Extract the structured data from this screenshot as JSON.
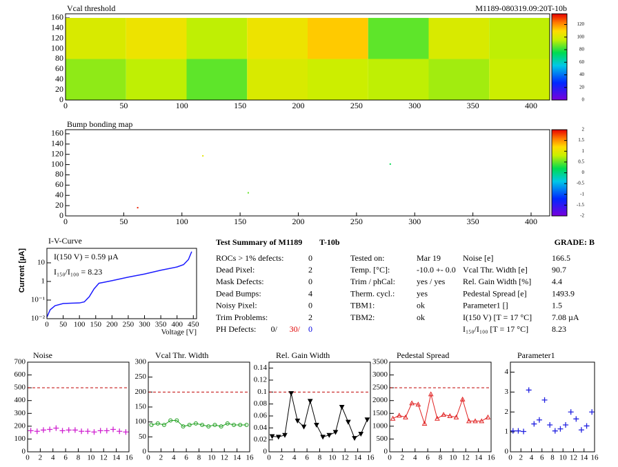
{
  "header": {
    "run_label": "M1189-080319.09:20T-10b"
  },
  "chart_data": [
    {
      "type": "heatmap",
      "title": "Vcal threshold",
      "xbins": [
        0,
        52,
        104,
        156,
        208,
        260,
        312,
        364,
        416
      ],
      "ybins": [
        0,
        80,
        160
      ],
      "values": [
        [
          90,
          95,
          85,
          100,
          97,
          95,
          92,
          97
        ],
        [
          100,
          105,
          95,
          105,
          112,
          85,
          100,
          95
        ]
      ],
      "xlim": [
        0,
        416
      ],
      "ylim": [
        0,
        168
      ],
      "xticks": [
        0,
        50,
        100,
        150,
        200,
        250,
        300,
        350,
        400
      ],
      "yticks": [
        0,
        20,
        40,
        60,
        80,
        100,
        120,
        140,
        160
      ],
      "zlim": [
        0,
        137
      ],
      "zticks": [
        0,
        20,
        40,
        60,
        80,
        100,
        120
      ]
    },
    {
      "type": "map",
      "title": "Bump bonding map",
      "x": [
        62,
        118,
        157,
        279
      ],
      "y": [
        16,
        117,
        45,
        101
      ],
      "values": [
        1.9,
        1.0,
        0.5,
        0.2
      ],
      "xlim": [
        0,
        416
      ],
      "ylim": [
        0,
        168
      ],
      "xticks": [
        0,
        50,
        100,
        150,
        200,
        250,
        300,
        350,
        400
      ],
      "yticks": [
        0,
        20,
        40,
        60,
        80,
        100,
        120,
        140,
        160
      ],
      "zlim": [
        -2,
        2
      ],
      "zticks": [
        -2,
        -1.5,
        -1,
        -0.5,
        0,
        0.5,
        1,
        1.5,
        2
      ]
    },
    {
      "type": "line",
      "title": "I-V-Curve",
      "x_label": "Voltage [V]",
      "y_label": "Current [µA]",
      "annotations": [
        "I(150 V) = 0.59 µA",
        "I₁₅₀/I₁₀₀ =  8.23"
      ],
      "x": [
        0,
        10,
        25,
        50,
        75,
        100,
        115,
        130,
        145,
        160,
        175,
        200,
        250,
        300,
        350,
        400,
        420,
        435,
        445
      ],
      "values": [
        0.012,
        0.03,
        0.05,
        0.065,
        0.068,
        0.07,
        0.08,
        0.15,
        0.4,
        0.8,
        0.9,
        1.1,
        1.7,
        2.5,
        4,
        6,
        8,
        15,
        40
      ],
      "color": "#1a1aff",
      "log_y": true,
      "xlim": [
        0,
        460
      ],
      "ylim": [
        0.01,
        60
      ],
      "xticks": [
        0,
        50,
        100,
        150,
        200,
        250,
        300,
        350,
        400,
        450
      ],
      "yticks": [
        {
          "value": 0.01,
          "label": "10⁻²"
        },
        {
          "value": 0.1,
          "label": "10⁻¹"
        },
        1,
        10
      ]
    },
    {
      "type": "scatter",
      "title": "Noise",
      "marker": "cross",
      "line": false,
      "color": "#d020d0",
      "limit": 500,
      "x": [
        0.5,
        1.5,
        2.5,
        3.5,
        4.5,
        5.5,
        6.5,
        7.5,
        8.5,
        9.5,
        10.5,
        11.5,
        12.5,
        13.5,
        14.5,
        15.5
      ],
      "values": [
        165,
        160,
        170,
        175,
        185,
        165,
        170,
        170,
        160,
        160,
        155,
        165,
        165,
        175,
        160,
        155
      ],
      "xlim": [
        0,
        16
      ],
      "ylim": [
        0,
        700
      ],
      "xticks": [
        0,
        2,
        4,
        6,
        8,
        10,
        12,
        14,
        16
      ],
      "yticks": [
        0,
        100,
        200,
        300,
        400,
        500,
        600,
        700
      ]
    },
    {
      "type": "scatter",
      "title": "Vcal Thr. Width",
      "marker": "circle",
      "line": true,
      "color": "#20a020",
      "limit": 200,
      "x": [
        0.5,
        1.5,
        2.5,
        3.5,
        4.5,
        5.5,
        6.5,
        7.5,
        8.5,
        9.5,
        10.5,
        11.5,
        12.5,
        13.5,
        14.5,
        15.5
      ],
      "values": [
        90,
        95,
        90,
        105,
        105,
        85,
        90,
        95,
        90,
        85,
        90,
        85,
        95,
        90,
        90,
        90
      ],
      "xlim": [
        0,
        16
      ],
      "ylim": [
        0,
        300
      ],
      "xticks": [
        0,
        2,
        4,
        6,
        8,
        10,
        12,
        14,
        16
      ],
      "yticks": [
        0,
        50,
        100,
        150,
        200,
        250,
        300
      ]
    },
    {
      "type": "scatter",
      "title": "Rel. Gain Width",
      "marker": "triangle-down",
      "line": true,
      "color": "#000000",
      "limit": 0.1,
      "x": [
        0.5,
        1.5,
        2.5,
        3.5,
        4.5,
        5.5,
        6.5,
        7.5,
        8.5,
        9.5,
        10.5,
        11.5,
        12.5,
        13.5,
        14.5,
        15.5
      ],
      "values": [
        0.026,
        0.025,
        0.028,
        0.098,
        0.052,
        0.042,
        0.085,
        0.045,
        0.025,
        0.028,
        0.033,
        0.075,
        0.05,
        0.023,
        0.03,
        0.054
      ],
      "xlim": [
        0,
        16
      ],
      "ylim": [
        0,
        0.15
      ],
      "xticks": [
        0,
        2,
        4,
        6,
        8,
        10,
        12,
        14,
        16
      ],
      "yticks": [
        0,
        0.02,
        0.04,
        0.06,
        0.08,
        0.1,
        0.12,
        0.14
      ]
    },
    {
      "type": "scatter",
      "title": "Pedestal Spread",
      "marker": "triangle",
      "line": true,
      "color": "#e02020",
      "limit": 2500,
      "x": [
        0.5,
        1.5,
        2.5,
        3.5,
        4.5,
        5.5,
        6.5,
        7.5,
        8.5,
        9.5,
        10.5,
        11.5,
        12.5,
        13.5,
        14.5,
        15.5
      ],
      "values": [
        1300,
        1420,
        1350,
        1900,
        1850,
        1100,
        2250,
        1300,
        1450,
        1400,
        1350,
        2050,
        1200,
        1200,
        1200,
        1350
      ],
      "xlim": [
        0,
        16
      ],
      "ylim": [
        0,
        3500
      ],
      "xticks": [
        0,
        2,
        4,
        6,
        8,
        10,
        12,
        14,
        16
      ],
      "yticks": [
        0,
        500,
        1000,
        1500,
        2000,
        2500,
        3000,
        3500
      ]
    },
    {
      "type": "scatter",
      "title": "Parameter1",
      "marker": "cross",
      "line": false,
      "color": "#2020e0",
      "x": [
        0.5,
        1.5,
        2.5,
        3.5,
        4.5,
        5.5,
        6.5,
        7.5,
        8.5,
        9.5,
        10.5,
        11.5,
        12.5,
        13.5,
        14.5,
        15.5
      ],
      "values": [
        1.05,
        1.05,
        1.02,
        3.1,
        1.4,
        1.6,
        2.6,
        1.35,
        1.05,
        1.15,
        1.35,
        2.0,
        1.65,
        1.1,
        1.3,
        2.0
      ],
      "xlim": [
        0,
        16
      ],
      "ylim": [
        0,
        4.5
      ],
      "xticks": [
        0,
        2,
        4,
        6,
        8,
        10,
        12,
        14,
        16
      ],
      "yticks": [
        0,
        1,
        2,
        3,
        4
      ]
    }
  ],
  "summary": {
    "title": "Test Summary of M1189",
    "module_type": "T-10b",
    "grade": "GRADE:  B",
    "defects": [
      [
        "ROCs > 1% defects:",
        "0"
      ],
      [
        "Dead Pixel:",
        "2"
      ],
      [
        "Mask Defects:",
        "0"
      ],
      [
        "Dead Bumps:",
        "4"
      ],
      [
        "Noisy Pixel:",
        "0"
      ],
      [
        "Trim Problems:",
        "2"
      ]
    ],
    "ph_defects": {
      "label": "PH Defects:",
      "values": [
        "0/",
        "30/",
        "0"
      ]
    },
    "conditions": [
      [
        "Tested on:",
        "Mar 19"
      ],
      [
        "Temp. [°C]:",
        "-10.0 +- 0.0"
      ],
      [
        "Trim / phCal:",
        "yes / yes"
      ],
      [
        "Therm. cycl.:",
        "yes"
      ],
      [
        "TBM1:",
        "ok"
      ],
      [
        "TBM2:",
        "ok"
      ]
    ],
    "results": [
      [
        "Noise [e]",
        "166.5"
      ],
      [
        "Vcal Thr. Width [e]",
        "90.7"
      ],
      [
        "Rel. Gain Width [%]",
        "4.4"
      ],
      [
        "Pedestal Spread [e]",
        "1493.9"
      ],
      [
        "Parameter1 []",
        "1.5"
      ],
      [
        "I(150 V) [T = 17 °C]",
        "7.08 µA"
      ],
      [
        "I₁₅₀/I₁₀₀ [T = 17 °C]",
        "8.23"
      ]
    ]
  }
}
